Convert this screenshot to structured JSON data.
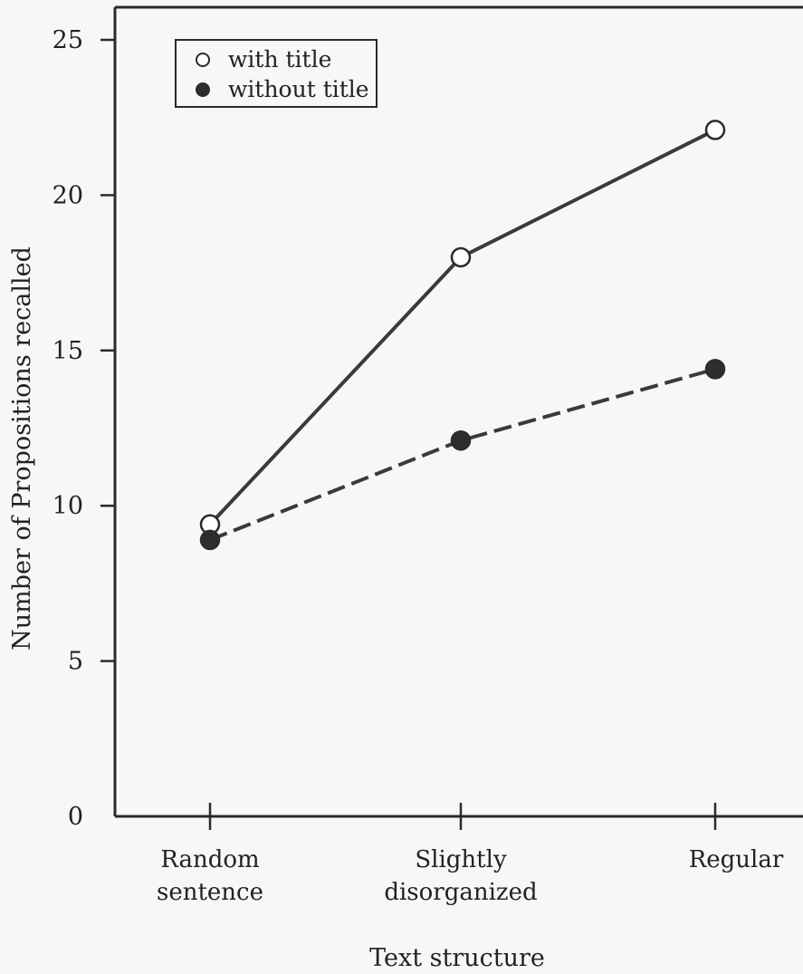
{
  "chart_data": {
    "type": "line",
    "title": "",
    "xlabel": "Text structure",
    "ylabel": "Number of Propositions recalled",
    "categories": [
      [
        "Random",
        "sentence"
      ],
      [
        "Slightly",
        "disorganized"
      ],
      [
        "Regular"
      ]
    ],
    "ylim": [
      0,
      25
    ],
    "yticks": [
      0,
      5,
      10,
      15,
      20,
      25
    ],
    "grid": false,
    "legend_position": "top-left",
    "series": [
      {
        "name": "with title",
        "values": [
          9.4,
          18.0,
          22.1
        ],
        "marker": "open-circle",
        "line_style": "solid",
        "color": "#3a3a3a"
      },
      {
        "name": "without title",
        "values": [
          8.9,
          12.1,
          14.4
        ],
        "marker": "filled-circle",
        "line_style": "dashed",
        "color": "#3a3a3a"
      }
    ]
  }
}
